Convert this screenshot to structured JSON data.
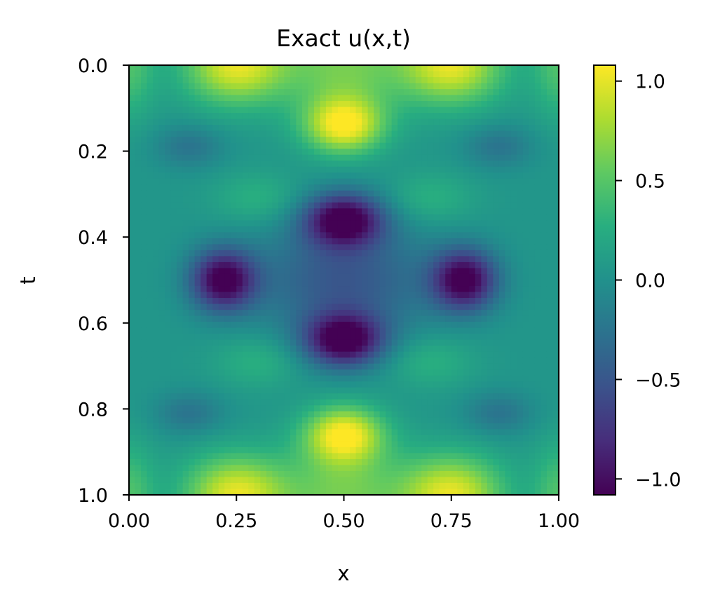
{
  "chart_data": {
    "type": "heatmap",
    "title": "Exact u(x,t)",
    "xlabel": "x",
    "ylabel": "t",
    "xlim": [
      0.0,
      1.0
    ],
    "ylim": [
      0.0,
      1.0
    ],
    "y_axis_inverted": true,
    "x_ticks": [
      "0.00",
      "0.25",
      "0.50",
      "0.75",
      "1.00"
    ],
    "y_ticks": [
      "0.0",
      "0.2",
      "0.4",
      "0.6",
      "0.8",
      "1.0"
    ],
    "colormap": "viridis",
    "colorbar": {
      "range": [
        -1.08,
        1.08
      ],
      "ticks": [
        "1.0",
        "0.5",
        "0.0",
        "−0.5",
        "−1.0"
      ],
      "tick_values": [
        1.0,
        0.5,
        0.0,
        -0.5,
        -1.0
      ]
    },
    "grid": false,
    "features": [
      {
        "x": 0.25,
        "t": 0.0,
        "u": 1.05
      },
      {
        "x": 0.5,
        "t": 0.14,
        "u": 1.05
      },
      {
        "x": 0.75,
        "t": 0.0,
        "u": 1.05
      },
      {
        "x": 0.5,
        "t": 0.36,
        "u": -1.05
      },
      {
        "x": 0.22,
        "t": 0.5,
        "u": -1.05
      },
      {
        "x": 0.78,
        "t": 0.5,
        "u": -1.05
      },
      {
        "x": 0.5,
        "t": 0.5,
        "u": -0.45
      },
      {
        "x": 0.5,
        "t": 0.64,
        "u": -1.05
      },
      {
        "x": 0.5,
        "t": 0.86,
        "u": 1.05
      },
      {
        "x": 0.25,
        "t": 1.0,
        "u": 1.05
      },
      {
        "x": 0.75,
        "t": 1.0,
        "u": 1.05
      }
    ]
  }
}
